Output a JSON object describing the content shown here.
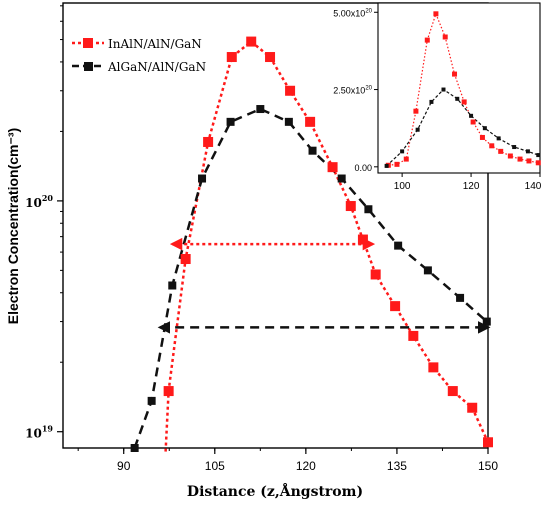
{
  "colors": {
    "series_red": "#ff1a1a",
    "series_black": "#111111",
    "axis": "#000000",
    "background": "#ffffff"
  },
  "chart_data": [
    {
      "type": "line",
      "title": "",
      "xlabel": "Distance (z,Ångstrom)",
      "ylabel": "Electron Concentration(cm⁻³)",
      "xlim": [
        80,
        150
      ],
      "ylim": [
        8.5e+18,
        7.2e+20
      ],
      "yscale": "log",
      "grid": false,
      "legend_position": "top-left",
      "x_tick_labels": [
        "90",
        "105",
        "120",
        "135",
        "150"
      ],
      "y_tick_labels": [
        {
          "base": "10",
          "exp": "20",
          "value": 1e+20
        },
        {
          "base": "10",
          "exp": "19",
          "value": 1e+19
        }
      ],
      "series": [
        {
          "name": "InAlN/AlN/GaN",
          "color": "#ff1a1a",
          "line_style": "dotted",
          "marker": "square",
          "x": [
            96.9,
            97.4,
            100.2,
            103.9,
            107.8,
            111.0,
            114.1,
            117.4,
            120.7,
            124.4,
            127.4,
            129.4,
            131.5,
            134.7,
            137.7,
            141.0,
            144.2,
            147.4,
            150.0
          ],
          "y": [
            8.2e+18,
            1.5e+19,
            5.6e+19,
            1.8e+20,
            4.2e+20,
            4.9e+20,
            4.2e+20,
            3e+20,
            2.2e+20,
            1.4e+20,
            9.5e+19,
            6.8e+19,
            4.8e+19,
            3.5e+19,
            2.6e+19,
            1.9e+19,
            1.5e+19,
            1.27e+19,
            9e+18
          ]
        },
        {
          "name": "AlGaN/AlN/GaN",
          "color": "#111111",
          "line_style": "dashed",
          "marker": "square",
          "x": [
            91.8,
            94.6,
            98.0,
            102.9,
            107.6,
            112.5,
            117.2,
            121.1,
            125.9,
            130.3,
            135.2,
            140.1,
            145.4,
            149.8
          ],
          "y": [
            8.5e+18,
            1.36e+19,
            4.3e+19,
            1.25e+20,
            2.2e+20,
            2.5e+20,
            2.2e+20,
            1.65e+20,
            1.25e+20,
            9.2e+19,
            6.4e+19,
            5e+19,
            3.8e+19,
            3e+19
          ]
        }
      ],
      "annotations": [
        {
          "type": "double-arrow",
          "color": "#ff1a1a",
          "line_style": "dotted",
          "x": [
            98.0,
            131.0
          ],
          "y": 6.5e+19
        },
        {
          "type": "double-arrow",
          "color": "#111111",
          "line_style": "dashed",
          "x": [
            96.0,
            150.0
          ],
          "y": 2.83e+19
        }
      ]
    },
    {
      "type": "line",
      "title": "",
      "xlabel": "",
      "ylabel": "",
      "xlim": [
        93,
        140
      ],
      "ylim": [
        -2e+19,
        5.3e+20
      ],
      "grid": false,
      "x_tick_labels": [
        "100",
        "120",
        "140"
      ],
      "y_tick_labels": [
        {
          "text": "0.00",
          "value": 0
        },
        {
          "base": "2.50x10",
          "exp": "20",
          "value": 2.5e+20
        },
        {
          "base": "5.00x10",
          "exp": "20",
          "value": 5e+20
        }
      ],
      "series": [
        {
          "name": "InAlN/AlN/GaN",
          "color": "#ff1a1a",
          "line_style": "dotted",
          "marker": "square",
          "x": [
            96,
            98.5,
            101.2,
            104.0,
            107.3,
            109.8,
            112.5,
            115.2,
            118.0,
            120.6,
            123.3,
            126.0,
            128.6,
            131.4,
            134.2,
            136.8,
            139.5
          ],
          "y": [
            5e+18,
            8e+18,
            2.5e+19,
            1.8e+20,
            4.1e+20,
            4.95e+20,
            4.2e+20,
            3e+20,
            2.1e+20,
            1.45e+20,
            9.5e+19,
            6.8e+19,
            5e+19,
            3.5e+19,
            2.5e+19,
            1.9e+19,
            1.3e+19
          ]
        },
        {
          "name": "AlGaN/AlN/GaN",
          "color": "#111111",
          "line_style": "dashed",
          "marker": "square",
          "x": [
            95.5,
            100.0,
            104.5,
            108.5,
            112.0,
            116.0,
            120.0,
            124.0,
            128.0,
            132.5,
            136.5,
            139.5
          ],
          "y": [
            3e+18,
            5e+19,
            1.2e+20,
            2.1e+20,
            2.5e+20,
            2.2e+20,
            1.65e+20,
            1.25e+20,
            9.2e+19,
            6.4e+19,
            5e+19,
            3.8e+19
          ]
        }
      ]
    }
  ]
}
